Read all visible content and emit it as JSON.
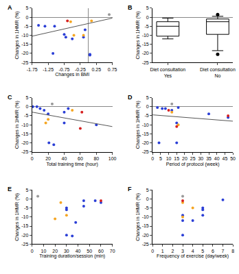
{
  "chart_data": [
    {
      "type": "scatter",
      "title": "A",
      "xlabel": "Changes in BMI",
      "ylabel": "Changes in 1HMR (%)",
      "xlim": [
        -1.75,
        0.75
      ],
      "xticks": [
        -1.75,
        -1.25,
        -0.75,
        -0.25,
        0.25,
        0.75
      ],
      "ylim": [
        -25,
        5
      ],
      "yticks": [
        -25,
        -20,
        -15,
        -10,
        -5,
        0,
        5
      ],
      "grid": false,
      "series": [
        {
          "color": "#2b3fd6",
          "marker": "circle",
          "x": [
            -1.55,
            -1.35,
            -1.1,
            -1.05,
            -0.75,
            -0.7,
            -0.5,
            -0.15,
            -0.1,
            0.05,
            0.05
          ],
          "y": [
            -4.5,
            -5,
            -20,
            -5,
            -9.5,
            -11,
            -12,
            -11,
            -7,
            -20.5,
            -21
          ]
        },
        {
          "color": "#f5a623",
          "marker": "circle",
          "x": [
            -0.55,
            -0.45,
            -0.15,
            0.1
          ],
          "y": [
            -2.5,
            -10,
            -10,
            -2
          ]
        },
        {
          "color": "#d62020",
          "marker": "circle",
          "x": [
            -0.65
          ],
          "y": [
            -2
          ]
        },
        {
          "color": "#999999",
          "marker": "circle",
          "x": [
            0.65
          ],
          "y": [
            1.5
          ]
        },
        {
          "type": "line",
          "color": "#555555",
          "line_style": "solid",
          "x": [
            -1.75,
            0.75
          ],
          "y": [
            -10.5,
            -0.5
          ]
        }
      ]
    },
    {
      "type": "box",
      "title": "B",
      "ylabel": "Changes in 1HMR (%)",
      "categories": [
        "Diet consultation\nYes",
        "Diet consultation\nNo"
      ],
      "ylim": [
        -25,
        5
      ],
      "yticks": [
        -25,
        -20,
        -15,
        -10,
        -5,
        0,
        5
      ],
      "grid": false,
      "color": "#000000",
      "boxes": [
        {
          "min": -12,
          "q1": -10.5,
          "median": -5,
          "q3": -2.5,
          "max": -0.5,
          "outliers": []
        },
        {
          "min": -18.5,
          "q1": -9.5,
          "median": -2.5,
          "q3": -1,
          "max": 0.5,
          "outliers": [
            1.5,
            -20.5
          ]
        }
      ]
    },
    {
      "type": "scatter",
      "title": "C",
      "xlabel": "Total training time (hour)",
      "ylabel": "Changes in 1HMR (%)",
      "xlim": [
        0,
        100
      ],
      "xticks": [
        0,
        20,
        40,
        60,
        80,
        100
      ],
      "ylim": [
        -25,
        5
      ],
      "yticks": [
        -25,
        -20,
        -15,
        -10,
        -5,
        0,
        5
      ],
      "grid": false,
      "series": [
        {
          "color": "#2b3fd6",
          "marker": "circle",
          "x": [
            1,
            6,
            10,
            15,
            20,
            21,
            27,
            40,
            80,
            40,
            45
          ],
          "y": [
            0,
            0,
            -1,
            -2,
            -4,
            -20,
            -21,
            -9,
            -10,
            -3,
            -1
          ]
        },
        {
          "color": "#f5a623",
          "marker": "circle",
          "x": [
            17,
            20,
            50
          ],
          "y": [
            -9,
            -7,
            -2
          ]
        },
        {
          "color": "#d62020",
          "marker": "circle",
          "x": [
            60,
            62
          ],
          "y": [
            -12,
            -3
          ]
        },
        {
          "color": "#999999",
          "marker": "circle",
          "x": [
            25
          ],
          "y": [
            1.5
          ]
        },
        {
          "type": "line",
          "color": "#555555",
          "line_style": "solid",
          "x": [
            0,
            100
          ],
          "y": [
            -3,
            -11
          ]
        }
      ]
    },
    {
      "type": "scatter",
      "title": "D",
      "xlabel": "Period of protocol (week)",
      "ylabel": "Changes in 1HMR (%)",
      "xlim": [
        0,
        50
      ],
      "xticks": [
        0,
        5,
        10,
        15,
        20,
        25,
        30,
        35,
        40,
        45,
        50
      ],
      "ylim": [
        -25,
        5
      ],
      "yticks": [
        -25,
        -20,
        -15,
        -10,
        -5,
        0,
        5
      ],
      "grid": false,
      "series": [
        {
          "color": "#2b3fd6",
          "marker": "circle",
          "x": [
            3,
            4,
            6,
            8,
            12,
            15,
            15,
            16,
            35,
            47
          ],
          "y": [
            -0.5,
            -20,
            -1,
            -1,
            -2,
            -9,
            -20,
            -0.5,
            -4,
            -6
          ]
        },
        {
          "color": "#f5a623",
          "marker": "circle",
          "x": [
            12,
            16
          ],
          "y": [
            -3,
            -10
          ]
        },
        {
          "color": "#d62020",
          "marker": "circle",
          "x": [
            10,
            15,
            47
          ],
          "y": [
            -2,
            -11,
            -5
          ]
        },
        {
          "color": "#999999",
          "marker": "circle",
          "x": [
            12
          ],
          "y": [
            1.5
          ]
        },
        {
          "type": "line",
          "color": "#555555",
          "line_style": "solid",
          "x": [
            0,
            50
          ],
          "y": [
            -4.5,
            -8
          ]
        }
      ]
    },
    {
      "type": "scatter",
      "title": "E",
      "xlabel": "Training duration/session (min)",
      "ylabel": "Changes in 1HMR (%)",
      "xlim": [
        0,
        70
      ],
      "xticks": [
        0,
        10,
        20,
        30,
        40,
        50,
        60,
        70
      ],
      "ylim": [
        -25,
        5
      ],
      "yticks": [
        -25,
        -20,
        -15,
        -10,
        -5,
        0,
        5
      ],
      "grid": false,
      "series": [
        {
          "color": "#2b3fd6",
          "marker": "circle",
          "x": [
            30,
            30,
            30,
            35,
            38,
            45,
            45,
            55,
            60
          ],
          "y": [
            -5,
            -6,
            -20,
            -20.5,
            -13,
            -4,
            -1,
            -1,
            -2
          ]
        },
        {
          "color": "#f5a623",
          "marker": "circle",
          "x": [
            20,
            25,
            30
          ],
          "y": [
            -11,
            -2,
            -9
          ]
        },
        {
          "color": "#d62020",
          "marker": "circle",
          "x": [
            60
          ],
          "y": [
            -1
          ]
        },
        {
          "color": "#999999",
          "marker": "circle",
          "x": [
            5
          ],
          "y": [
            1.5
          ]
        }
      ]
    },
    {
      "type": "scatter",
      "title": "F",
      "xlabel": "Frequency of exercise (day/week)",
      "ylabel": "Changes in 1HMR (%)",
      "xlim": [
        0,
        8
      ],
      "xticks": [
        0,
        1,
        2,
        3,
        4,
        5,
        6,
        7,
        8
      ],
      "ylim": [
        -25,
        5
      ],
      "yticks": [
        -25,
        -20,
        -15,
        -10,
        -5,
        0,
        5
      ],
      "grid": false,
      "series": [
        {
          "color": "#2b3fd6",
          "marker": "circle",
          "x": [
            3,
            3,
            3,
            4,
            5,
            5,
            5,
            7
          ],
          "y": [
            -9,
            -12,
            -20,
            -12,
            -5,
            -6,
            -9,
            -0.5
          ]
        },
        {
          "color": "#f5a623",
          "marker": "circle",
          "x": [
            3,
            3,
            4
          ],
          "y": [
            -2,
            -10,
            -5
          ]
        },
        {
          "color": "#d62020",
          "marker": "circle",
          "x": [
            3
          ],
          "y": [
            -1
          ]
        },
        {
          "color": "#999999",
          "marker": "circle",
          "x": [
            3
          ],
          "y": [
            1.5
          ]
        }
      ]
    }
  ]
}
